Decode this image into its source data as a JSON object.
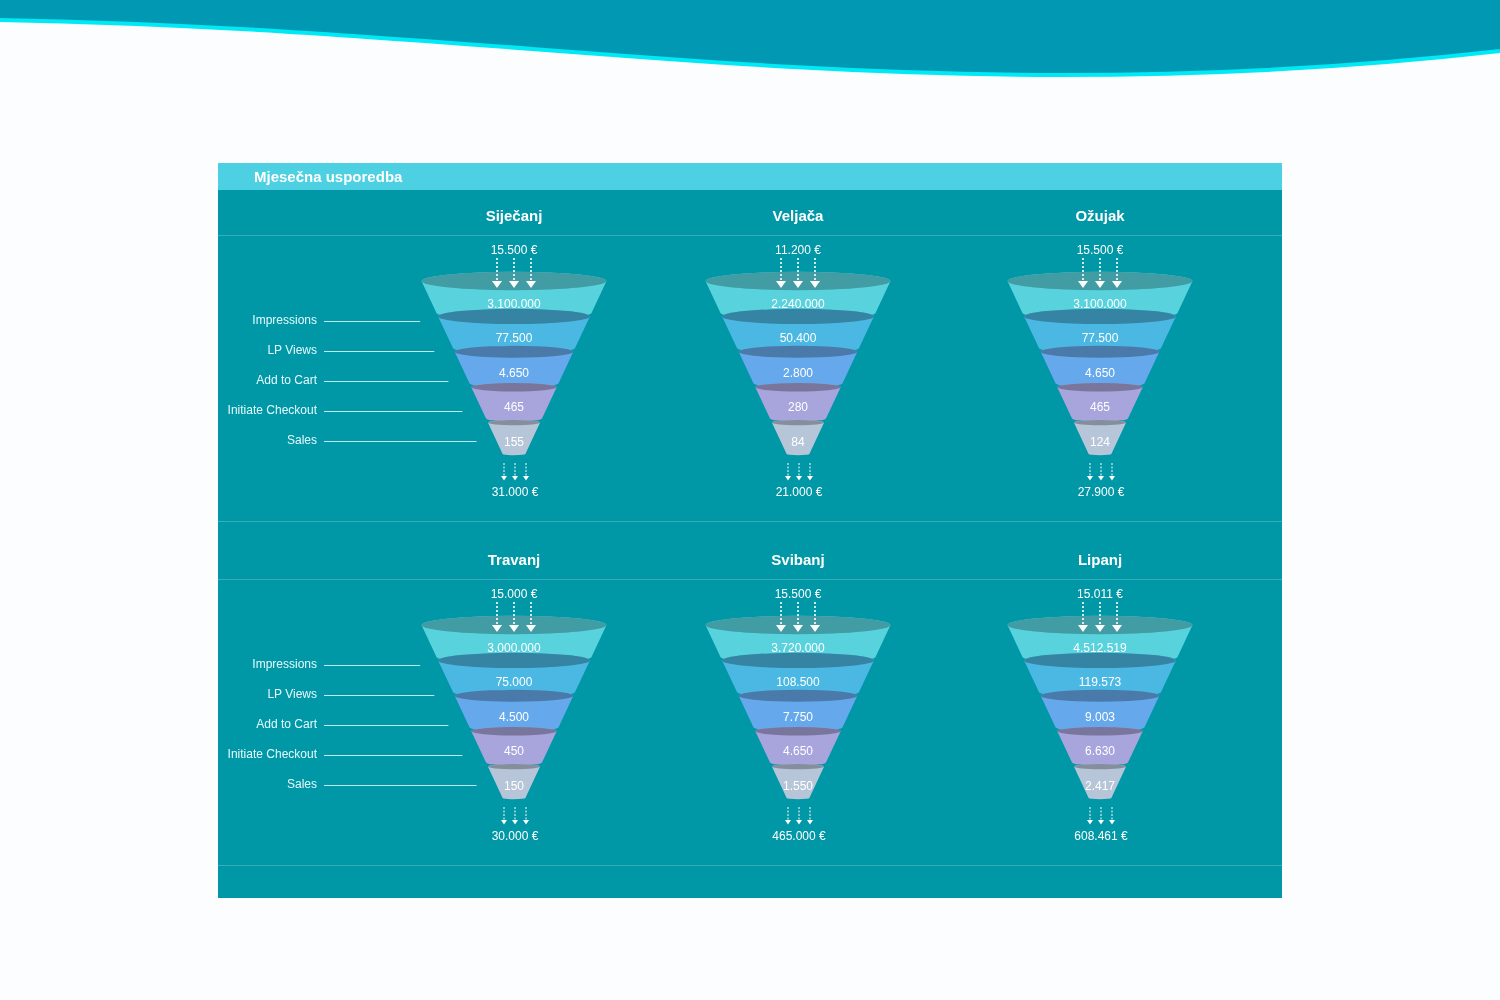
{
  "chart_data": [
    {
      "type": "other",
      "title": "Siječanj",
      "subtitle": "Mjesečna usporedba",
      "categories": [
        "Impressions",
        "LP Views",
        "Add to Cart",
        "Initiate Checkout",
        "Sales"
      ],
      "values": [
        3100000,
        77500,
        4650,
        465,
        155
      ],
      "value_labels": [
        "3.100.000",
        "77.500",
        "4.650",
        "465",
        "155"
      ],
      "colors": [
        "#58d3dd",
        "#4ab8e2",
        "#65a9ec",
        "#a8a4dc",
        "#b7c5d9"
      ],
      "data_labels": true,
      "annotations": [
        "15.500 €",
        "31.000 €"
      ]
    },
    {
      "type": "other",
      "title": "Veljača",
      "categories": [
        null,
        null,
        null,
        null,
        null
      ],
      "values": [
        2240000,
        50400,
        2800,
        280,
        84
      ],
      "value_labels": [
        "2.240.000",
        "50.400",
        "2.800",
        "280",
        "84"
      ],
      "colors": [
        "#58d3dd",
        "#4ab8e2",
        "#65a9ec",
        "#a8a4dc",
        "#b7c5d9"
      ],
      "data_labels": true,
      "annotations": [
        "11.200 €",
        "21.000 €"
      ]
    },
    {
      "type": "other",
      "title": "Ožujak",
      "categories": [
        null,
        null,
        null,
        null,
        null
      ],
      "values": [
        3100000,
        77500,
        4650,
        465,
        124
      ],
      "value_labels": [
        "3.100.000",
        "77.500",
        "4.650",
        "465",
        "124"
      ],
      "colors": [
        "#58d3dd",
        "#4ab8e2",
        "#65a9ec",
        "#a8a4dc",
        "#b7c5d9"
      ],
      "data_labels": true,
      "annotations": [
        "15.500 €",
        "27.900 €"
      ]
    },
    {
      "type": "other",
      "title": "Travanj",
      "categories": [
        "Impressions",
        "LP Views",
        "Add to Cart",
        "Initiate Checkout",
        "Sales"
      ],
      "values": [
        3000000,
        75000,
        4500,
        450,
        150
      ],
      "value_labels": [
        "3.000.000",
        "75.000",
        "4.500",
        "450",
        "150"
      ],
      "colors": [
        "#58d3dd",
        "#4ab8e2",
        "#65a9ec",
        "#a8a4dc",
        "#b7c5d9"
      ],
      "data_labels": true,
      "annotations": [
        "15.000 €",
        "30.000 €"
      ]
    },
    {
      "type": "other",
      "title": "Svibanj",
      "categories": [
        null,
        null,
        null,
        null,
        null
      ],
      "values": [
        3720000,
        108500,
        7750,
        4650,
        1550
      ],
      "value_labels": [
        "3.720.000",
        "108.500",
        "7.750",
        "4.650",
        "1.550"
      ],
      "colors": [
        "#58d3dd",
        "#4ab8e2",
        "#65a9ec",
        "#a8a4dc",
        "#b7c5d9"
      ],
      "data_labels": true,
      "annotations": [
        "15.500 €",
        "465.000 €"
      ]
    },
    {
      "type": "other",
      "title": "Lipanj",
      "categories": [
        null,
        null,
        null,
        null,
        null
      ],
      "values": [
        4512519,
        119573,
        9003,
        6630,
        2417
      ],
      "value_labels": [
        "4.512.519",
        "119.573",
        "9.003",
        "6.630",
        "2.417"
      ],
      "colors": [
        "#58d3dd",
        "#4ab8e2",
        "#65a9ec",
        "#a8a4dc",
        "#b7c5d9"
      ],
      "data_labels": true,
      "annotations": [
        "15.011 €",
        "608.461 €"
      ]
    }
  ]
}
